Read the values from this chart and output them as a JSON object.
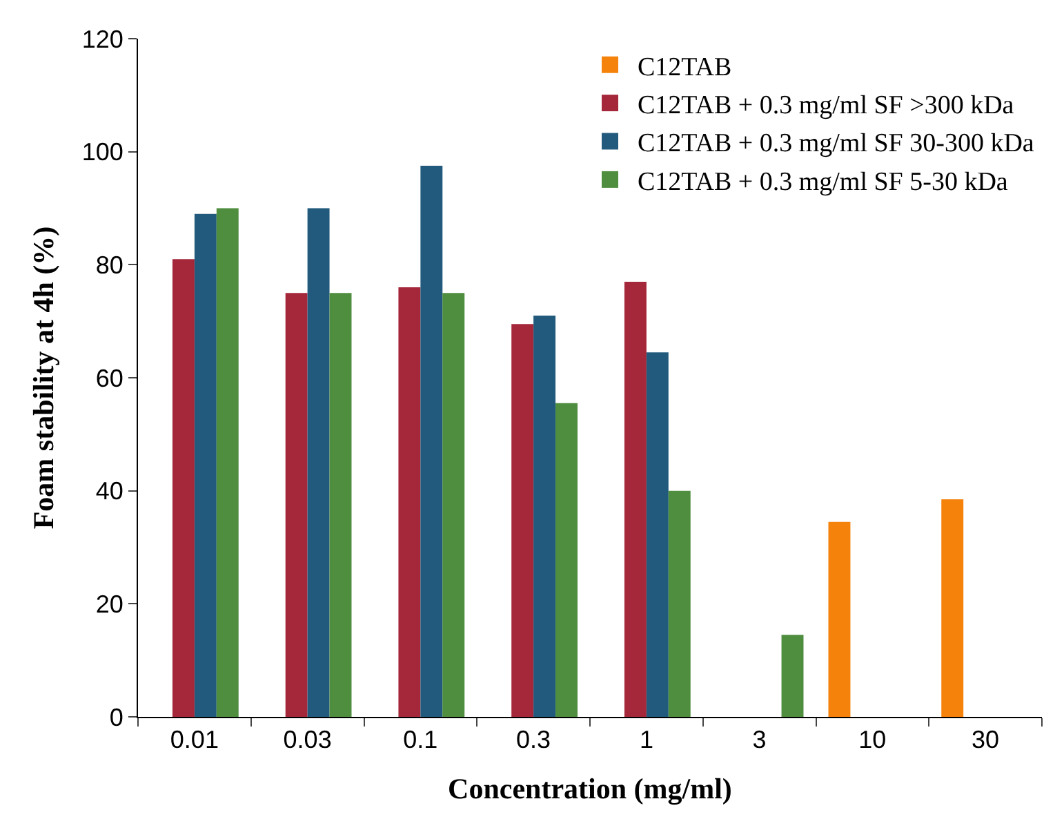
{
  "chart_data": {
    "type": "bar",
    "xlabel": "Concentration (mg/ml)",
    "ylabel": "Foam stability at 4h (%)",
    "categories": [
      "0.01",
      "0.03",
      "0.1",
      "0.3",
      "1",
      "3",
      "10",
      "30"
    ],
    "series": [
      {
        "name": "C12TAB",
        "color": "#f5820b",
        "values": [
          null,
          null,
          null,
          null,
          null,
          null,
          34.5,
          38.5
        ]
      },
      {
        "name": "C12TAB + 0.3 mg/ml SF >300 kDa",
        "color": "#a4283a",
        "values": [
          81,
          75,
          76,
          69.5,
          77,
          null,
          null,
          null
        ]
      },
      {
        "name": "C12TAB + 0.3 mg/ml SF 30-300 kDa",
        "color": "#215a7c",
        "values": [
          89,
          90,
          97.5,
          71,
          64.5,
          null,
          null,
          null
        ]
      },
      {
        "name": "C12TAB + 0.3 mg/ml SF 5-30 kDa",
        "color": "#4f8d3f",
        "values": [
          90,
          75,
          75,
          55.5,
          40,
          14.5,
          null,
          null
        ]
      }
    ],
    "ylim": [
      0,
      120
    ],
    "yticks": [
      0,
      20,
      40,
      60,
      80,
      100,
      120
    ],
    "grid": false,
    "legend": "top right"
  }
}
